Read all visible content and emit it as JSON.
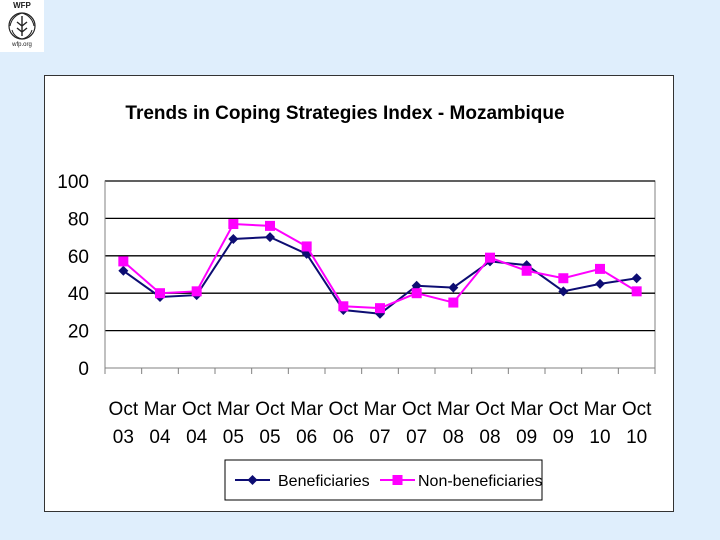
{
  "logo": {
    "top_text": "WFP",
    "bottom_text": "wfp.org"
  },
  "chart_data": {
    "type": "line",
    "title": "Trends in Coping Strategies  Index - Mozambique",
    "xlabel": "",
    "ylabel": "",
    "categories": [
      [
        "Oct",
        "03"
      ],
      [
        "Mar",
        "04"
      ],
      [
        "Oct",
        "04"
      ],
      [
        "Mar",
        "05"
      ],
      [
        "Oct",
        "05"
      ],
      [
        "Mar",
        "06"
      ],
      [
        "Oct",
        "06"
      ],
      [
        "Mar",
        "07"
      ],
      [
        "Oct",
        "07"
      ],
      [
        "Mar",
        "08"
      ],
      [
        "Oct",
        "08"
      ],
      [
        "Mar",
        "09"
      ],
      [
        "Oct",
        "09"
      ],
      [
        "Mar",
        "10"
      ],
      [
        "Oct",
        "10"
      ]
    ],
    "ylim": [
      0,
      100
    ],
    "yticks": [
      0,
      20,
      40,
      60,
      80,
      100
    ],
    "grid": true,
    "legend_position": "bottom",
    "series": [
      {
        "name": "Beneficiaries",
        "color": "#0d0d73",
        "marker": "diamond",
        "values": [
          52,
          38,
          39,
          69,
          70,
          61,
          31,
          29,
          44,
          43,
          57,
          55,
          41,
          45,
          48
        ]
      },
      {
        "name": "Non-beneficiaries",
        "color": "#ff00ff",
        "marker": "square",
        "values": [
          57,
          40,
          41,
          77,
          76,
          65,
          33,
          32,
          40,
          35,
          59,
          52,
          48,
          53,
          41
        ]
      }
    ]
  }
}
